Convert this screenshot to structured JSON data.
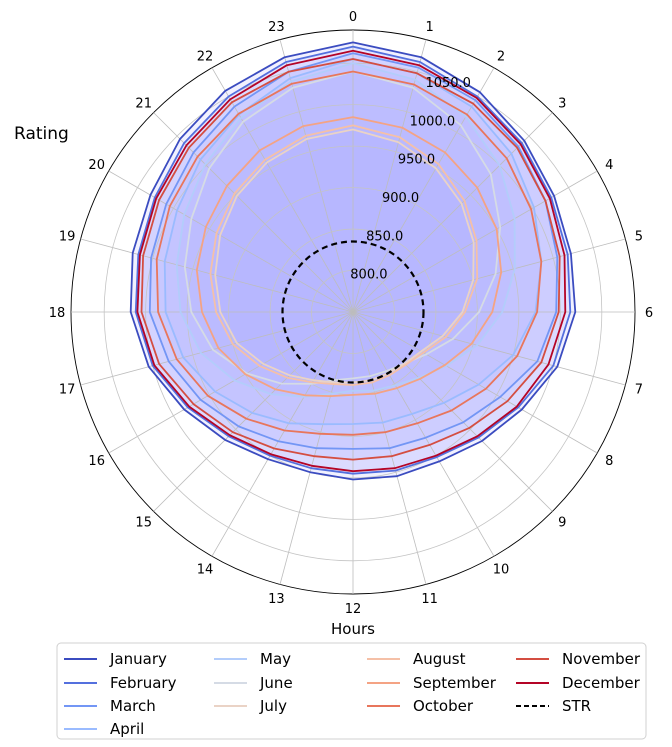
{
  "chart_data": {
    "type": "polar-line",
    "title": "",
    "ylabel": "Rating",
    "xlabel": "Hours",
    "theta_ticks": [
      "0",
      "1",
      "2",
      "3",
      "4",
      "5",
      "6",
      "7",
      "8",
      "9",
      "10",
      "11",
      "12",
      "13",
      "14",
      "15",
      "16",
      "17",
      "18",
      "19",
      "20",
      "21",
      "22",
      "23"
    ],
    "r_ticks": [
      "800.0",
      "850.0",
      "900.0",
      "950.0",
      "1000.0",
      "1050.0"
    ],
    "r_tick_values": [
      800,
      850,
      900,
      950,
      1000,
      1050
    ],
    "rlim": [
      750,
      1090
    ],
    "grid": true,
    "legend_position": "bottom",
    "series": [
      {
        "name": "January",
        "color": "#3b4cc0",
        "values": [
          1075,
          1068,
          1056,
          1042,
          1030,
          1022,
          1018,
          1005,
          985,
          970,
          958,
          955,
          952,
          950,
          955,
          968,
          985,
          1005,
          1018,
          1025,
          1032,
          1045,
          1058,
          1068
        ]
      },
      {
        "name": "February",
        "color": "#5470de",
        "values": [
          1070,
          1062,
          1050,
          1038,
          1026,
          1018,
          1012,
          1000,
          980,
          964,
          952,
          948,
          945,
          945,
          950,
          962,
          980,
          1000,
          1012,
          1018,
          1026,
          1038,
          1050,
          1062
        ]
      },
      {
        "name": "March",
        "color": "#7396f5",
        "values": [
          1062,
          1055,
          1045,
          1032,
          1018,
          1005,
          995,
          980,
          955,
          938,
          925,
          920,
          915,
          920,
          930,
          945,
          962,
          980,
          995,
          1002,
          1010,
          1022,
          1036,
          1050
        ]
      },
      {
        "name": "April",
        "color": "#9abbff",
        "values": [
          1055,
          1048,
          1036,
          1020,
          1002,
          985,
          970,
          950,
          925,
          905,
          892,
          888,
          885,
          890,
          905,
          922,
          942,
          962,
          976,
          985,
          995,
          1010,
          1025,
          1042
        ]
      },
      {
        "name": "May",
        "color": "#b3cdfb",
        "values": [
          1050,
          1040,
          1022,
          1000,
          975,
          952,
          930,
          905,
          880,
          862,
          852,
          848,
          845,
          852,
          868,
          890,
          915,
          940,
          958,
          970,
          985,
          1002,
          1020,
          1038
        ]
      },
      {
        "name": "June",
        "color": "#d5dbe5",
        "values": [
          1040,
          1030,
          1010,
          985,
          955,
          928,
          902,
          875,
          852,
          838,
          832,
          830,
          830,
          835,
          850,
          872,
          898,
          925,
          945,
          960,
          975,
          995,
          1015,
          1030
        ]
      },
      {
        "name": "July",
        "color": "#ead3c6",
        "values": [
          970,
          962,
          950,
          935,
          918,
          900,
          882,
          862,
          845,
          838,
          835,
          835,
          835,
          838,
          845,
          858,
          875,
          895,
          910,
          922,
          935,
          948,
          958,
          966
        ]
      },
      {
        "name": "August",
        "color": "#f5c0a7",
        "values": [
          975,
          968,
          956,
          940,
          922,
          905,
          885,
          866,
          848,
          840,
          838,
          838,
          838,
          840,
          848,
          862,
          880,
          900,
          915,
          928,
          940,
          952,
          962,
          970
        ]
      },
      {
        "name": "September",
        "color": "#f4a384",
        "values": [
          985,
          980,
          972,
          962,
          950,
          935,
          918,
          898,
          878,
          864,
          856,
          852,
          850,
          855,
          866,
          882,
          900,
          918,
          932,
          945,
          955,
          965,
          975,
          982
        ]
      },
      {
        "name": "October",
        "color": "#e8765c",
        "values": [
          1040,
          1034,
          1025,
          1012,
          998,
          985,
          972,
          955,
          935,
          918,
          905,
          900,
          898,
          902,
          915,
          932,
          952,
          970,
          985,
          995,
          1005,
          1015,
          1026,
          1035
        ]
      },
      {
        "name": "November",
        "color": "#d44e41",
        "values": [
          1055,
          1048,
          1040,
          1030,
          1018,
          1008,
          998,
          985,
          965,
          948,
          935,
          930,
          928,
          930,
          940,
          955,
          972,
          992,
          1005,
          1012,
          1020,
          1030,
          1042,
          1050
        ]
      },
      {
        "name": "December",
        "color": "#b40426",
        "values": [
          1065,
          1058,
          1048,
          1036,
          1024,
          1014,
          1006,
          994,
          978,
          962,
          950,
          945,
          942,
          942,
          948,
          960,
          978,
          998,
          1010,
          1016,
          1024,
          1034,
          1046,
          1058
        ]
      },
      {
        "name": "STR",
        "color": "#000000",
        "dashed": true,
        "constant": 835
      }
    ]
  }
}
